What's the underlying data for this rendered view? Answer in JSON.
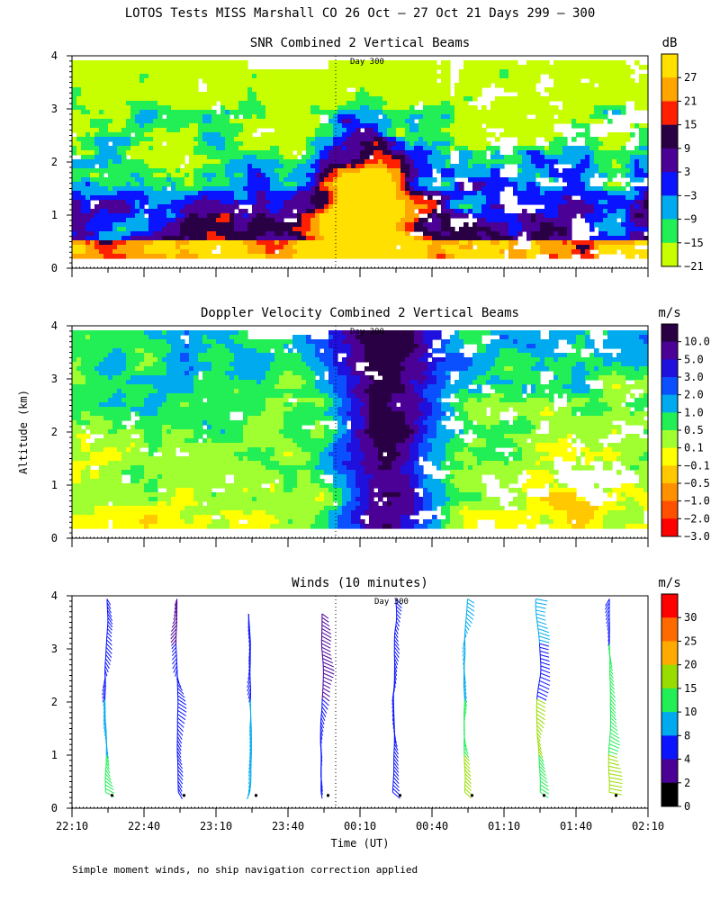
{
  "figure": {
    "title": "LOTOS Tests MISS Marshall CO  26 Oct — 27 Oct 21 Days 299 — 300",
    "ylabel": "Altitude (km)",
    "xlabel": "Time (UT)",
    "footnote": "Simple moment winds, no ship navigation correction applied",
    "day_marker": "Day 300"
  },
  "chart_data": [
    {
      "type": "heatmap",
      "title": "SNR Combined 2 Vertical Beams",
      "unit": "dB",
      "ylim": [
        0,
        4
      ],
      "yticks": [
        "0",
        "1",
        "2",
        "3",
        "4"
      ],
      "colorbar": {
        "labels": [
          "27",
          "21",
          "15",
          "9",
          "3",
          "−3",
          "−9",
          "−15",
          "−21"
        ],
        "colors": [
          "#ffe000",
          "#ffa500",
          "#ff2000",
          "#2a0044",
          "#4b0096",
          "#0a14ff",
          "#00aaee",
          "#22ee55",
          "#c8ff00"
        ]
      }
    },
    {
      "type": "heatmap",
      "title": "Doppler Velocity Combined 2 Vertical Beams",
      "unit": "m/s",
      "ylim": [
        0,
        4
      ],
      "yticks": [
        "0",
        "1",
        "2",
        "3",
        "4"
      ],
      "colorbar": {
        "labels": [
          "10.0",
          "5.0",
          "3.0",
          "2.0",
          "1.0",
          "0.5",
          "0.1",
          "−0.1",
          "−0.5",
          "−1.0",
          "−2.0",
          "−3.0"
        ],
        "colors": [
          "#2a0044",
          "#4b0096",
          "#2010dd",
          "#0a50ff",
          "#00aaee",
          "#22ee55",
          "#a0ff30",
          "#ffff00",
          "#ffc800",
          "#ff9000",
          "#ff5000",
          "#ff0000"
        ]
      }
    },
    {
      "type": "scatter",
      "title": "Winds (10 minutes)",
      "unit": "m/s",
      "ylim": [
        0,
        4
      ],
      "yticks": [
        "0",
        "1",
        "2",
        "3",
        "4"
      ],
      "xticks": [
        "22:10",
        "22:40",
        "23:10",
        "23:40",
        "00:10",
        "00:40",
        "01:10",
        "01:40",
        "02:10"
      ],
      "profile_times": [
        "22:25",
        "22:55",
        "23:25",
        "23:55",
        "00:25",
        "00:55",
        "01:25",
        "01:55"
      ],
      "colorbar": {
        "labels": [
          "30",
          "25",
          "20",
          "15",
          "10",
          "8",
          "4",
          "2",
          "0"
        ],
        "colors": [
          "#ff0000",
          "#ff6a00",
          "#ffaa00",
          "#99dd00",
          "#22ee55",
          "#00aaee",
          "#0a14ff",
          "#4b0096",
          "#000000"
        ]
      }
    }
  ]
}
